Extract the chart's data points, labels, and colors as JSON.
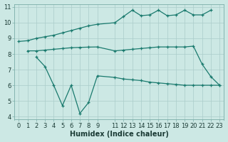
{
  "xlabel": "Humidex (Indice chaleur)",
  "bg_color": "#cce8e4",
  "grid_color": "#aaccca",
  "line_color": "#1a7a6e",
  "line_top_x": [
    0,
    1,
    2,
    3,
    4,
    5,
    6,
    7,
    8,
    9,
    11,
    12,
    13,
    14,
    15,
    16,
    17,
    18,
    19,
    20,
    21,
    22
  ],
  "line_top_y": [
    8.8,
    8.85,
    9.0,
    9.1,
    9.2,
    9.35,
    9.5,
    9.65,
    9.8,
    9.9,
    10.0,
    10.4,
    10.8,
    10.45,
    10.5,
    10.8,
    10.45,
    10.5,
    10.8,
    10.5,
    10.5,
    10.8
  ],
  "line_mid_x": [
    1,
    2,
    3,
    4,
    5,
    6,
    7,
    8,
    9,
    11,
    12,
    13,
    14,
    15,
    16,
    17,
    18,
    19,
    20,
    21,
    22,
    23
  ],
  "line_mid_y": [
    8.2,
    8.2,
    8.25,
    8.3,
    8.35,
    8.4,
    8.42,
    8.44,
    8.45,
    8.2,
    8.25,
    8.3,
    8.35,
    8.4,
    8.45,
    8.45,
    8.45,
    8.45,
    8.5,
    7.35,
    6.55,
    6.0
  ],
  "line_bot_x": [
    2,
    3,
    4,
    5,
    6,
    7,
    8,
    9,
    11,
    12,
    13,
    14,
    15,
    16,
    17,
    18,
    19,
    20,
    21,
    22,
    23
  ],
  "line_bot_y": [
    7.8,
    7.2,
    6.0,
    4.7,
    6.0,
    4.2,
    4.9,
    6.6,
    6.5,
    6.4,
    6.35,
    6.3,
    6.2,
    6.15,
    6.1,
    6.05,
    6.0,
    6.0,
    6.0,
    6.0,
    6.0
  ],
  "xlim": [
    -0.5,
    23.5
  ],
  "ylim": [
    3.8,
    11.2
  ],
  "xticks": [
    0,
    1,
    2,
    3,
    4,
    5,
    6,
    7,
    8,
    9,
    11,
    12,
    13,
    14,
    15,
    16,
    17,
    18,
    19,
    20,
    21,
    22,
    23
  ],
  "yticks": [
    4,
    5,
    6,
    7,
    8,
    9,
    10,
    11
  ],
  "tick_fontsize": 6,
  "xlabel_fontsize": 7
}
